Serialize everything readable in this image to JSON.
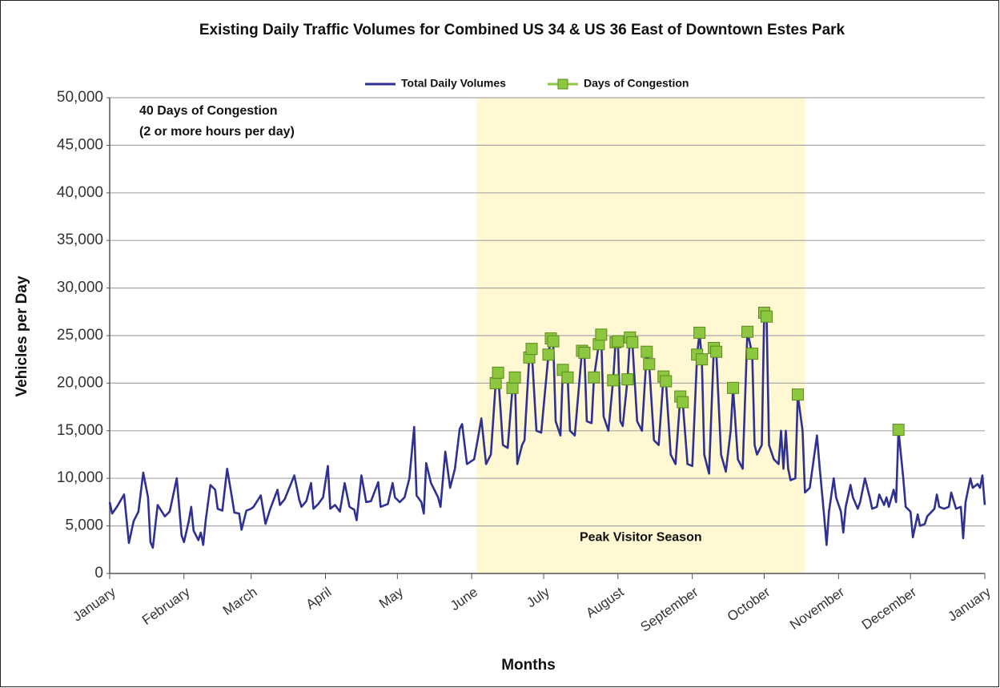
{
  "chart_data": {
    "type": "line",
    "title": "Existing Daily Traffic Volumes for Combined US 34 & US 36 East of Downtown Estes Park",
    "xlabel": "Months",
    "ylabel": "Vehicles per Day",
    "annotations": [
      "40 Days of Congestion",
      "(2 or more hours per day)"
    ],
    "highlight": {
      "x": [
        153,
        290
      ],
      "label": "Peak Visitor Season",
      "color": "#fff8d2"
    },
    "xlim": [
      0,
      365
    ],
    "xticks": [
      {
        "value": 0,
        "label": "January"
      },
      {
        "value": 31,
        "label": "February"
      },
      {
        "value": 59,
        "label": "March"
      },
      {
        "value": 90,
        "label": "April"
      },
      {
        "value": 120,
        "label": "May"
      },
      {
        "value": 151,
        "label": "June"
      },
      {
        "value": 181,
        "label": "July"
      },
      {
        "value": 212,
        "label": "August"
      },
      {
        "value": 243,
        "label": "September"
      },
      {
        "value": 273,
        "label": "October"
      },
      {
        "value": 304,
        "label": "November"
      },
      {
        "value": 334,
        "label": "December"
      },
      {
        "value": 365,
        "label": "January"
      }
    ],
    "ylim": [
      0,
      50000
    ],
    "yticks": [
      0,
      {
        "value": 5000,
        "label": "5,000"
      },
      {
        "value": 10000,
        "label": "10,000"
      },
      {
        "value": 15000,
        "label": "15,000"
      },
      {
        "value": 20000,
        "label": "20,000"
      },
      {
        "value": 25000,
        "label": "25,000"
      },
      {
        "value": 30000,
        "label": "30,000"
      },
      {
        "value": 35000,
        "label": "35,000"
      },
      {
        "value": 40000,
        "label": "40,000"
      },
      {
        "value": 45000,
        "label": "45,000"
      },
      {
        "value": 50000,
        "label": "50,000"
      }
    ],
    "grid": true,
    "series": [
      {
        "name": "Total Daily Volumes",
        "color": "#2e3192",
        "x": [
          0,
          1,
          3,
          6,
          8,
          10,
          12,
          14,
          16,
          17,
          18,
          20,
          23,
          25,
          28,
          30,
          31,
          33,
          34,
          35,
          37,
          38,
          39,
          40,
          42,
          44,
          45,
          47,
          49,
          51,
          52,
          54,
          55,
          57,
          59,
          60,
          63,
          65,
          67,
          70,
          71,
          73,
          77,
          79,
          80,
          82,
          84,
          85,
          87,
          89,
          91,
          92,
          94,
          96,
          98,
          100,
          102,
          103,
          105,
          107,
          109,
          112,
          113,
          116,
          118,
          119,
          121,
          123,
          125,
          127,
          128,
          130,
          131,
          132,
          134,
          137,
          138,
          140,
          142,
          144,
          146,
          147,
          149,
          152,
          154,
          155,
          157,
          159,
          161,
          162,
          164,
          166,
          168,
          169,
          170,
          172,
          173,
          175,
          176,
          178,
          180,
          183,
          184,
          185,
          186,
          188,
          189,
          191,
          192,
          194,
          197,
          198,
          199,
          201,
          202,
          204,
          205,
          206,
          208,
          210,
          211,
          212,
          213,
          214,
          216,
          217,
          218,
          220,
          222,
          224,
          225,
          227,
          229,
          231,
          232,
          234,
          236,
          238,
          239,
          241,
          243,
          245,
          246,
          247,
          248,
          250,
          252,
          253,
          255,
          257,
          259,
          260,
          262,
          264,
          266,
          268,
          269,
          270,
          272,
          273,
          274,
          275,
          277,
          279,
          280,
          281,
          282,
          283,
          284,
          286,
          287,
          289,
          290,
          292,
          295,
          296,
          298,
          299,
          300,
          302,
          303,
          305,
          306,
          307,
          309,
          310,
          312,
          313,
          315,
          317,
          318,
          320,
          321,
          323,
          324,
          325,
          327,
          328,
          329,
          331,
          332,
          334,
          335,
          337,
          338,
          340,
          341,
          344,
          345,
          346,
          348,
          350,
          351,
          353,
          355,
          356,
          357,
          359,
          360,
          362,
          363,
          364,
          365
        ],
        "values": [
          7500,
          6300,
          7000,
          8300,
          3200,
          5500,
          6500,
          10600,
          8000,
          3300,
          2700,
          7200,
          6000,
          6500,
          10000,
          4000,
          3300,
          5500,
          7000,
          4500,
          3500,
          4300,
          3000,
          5500,
          9300,
          8800,
          6800,
          6600,
          11000,
          8000,
          6400,
          6300,
          4600,
          6600,
          6800,
          7000,
          8200,
          5200,
          6800,
          8800,
          7200,
          7800,
          10300,
          7800,
          7000,
          7600,
          9500,
          6800,
          7300,
          8000,
          11300,
          6800,
          7200,
          6500,
          9500,
          7000,
          6700,
          5600,
          10300,
          7500,
          7600,
          9600,
          7000,
          7300,
          9500,
          8000,
          7500,
          8000,
          10000,
          15400,
          8200,
          7500,
          6300,
          11600,
          9500,
          8000,
          7000,
          12800,
          9000,
          11000,
          15200,
          15700,
          11500,
          12000,
          14800,
          16300,
          11500,
          12500,
          20000,
          21100,
          13500,
          13200,
          19500,
          20600,
          11500,
          13500,
          14000,
          22700,
          23600,
          15000,
          14800,
          23000,
          24700,
          24400,
          16000,
          14500,
          21400,
          20600,
          15000,
          14500,
          23400,
          23200,
          16000,
          15800,
          20600,
          24100,
          25100,
          16500,
          15000,
          20300,
          24300,
          24400,
          16000,
          15500,
          20400,
          24800,
          24300,
          16000,
          15000,
          23300,
          22000,
          14000,
          13500,
          20700,
          20200,
          12500,
          11500,
          18600,
          18000,
          11500,
          11300,
          23000,
          25300,
          22500,
          12500,
          10500,
          23700,
          23300,
          12500,
          10700,
          15000,
          19500,
          12000,
          11000,
          25400,
          23100,
          13500,
          12500,
          13500,
          27400,
          27000,
          13500,
          12000,
          11500,
          15000,
          11000,
          15000,
          11000,
          9800,
          10000,
          18800,
          15000,
          8500,
          9000,
          14500,
          11500,
          6000,
          3000,
          6500,
          10000,
          8000,
          6500,
          4300,
          7000,
          9300,
          8000,
          6800,
          7500,
          10000,
          8000,
          6800,
          7000,
          8300,
          7200,
          8000,
          7000,
          8800,
          7500,
          15100,
          10000,
          7000,
          6500,
          3800,
          6200,
          5000,
          5200,
          6000,
          6800,
          8300,
          7000,
          6800,
          7000,
          8500,
          6800,
          7000,
          3700,
          7500,
          10000,
          9000,
          9400,
          9000,
          10300,
          7200
        ]
      },
      {
        "name": "Days of Congestion",
        "color": "#8dc63f",
        "marker": "square",
        "x": [
          161,
          162,
          168,
          169,
          175,
          176,
          183,
          184,
          185,
          189,
          191,
          197,
          198,
          202,
          204,
          205,
          210,
          211,
          212,
          216,
          217,
          218,
          224,
          225,
          231,
          232,
          238,
          239,
          245,
          246,
          247,
          252,
          253,
          260,
          266,
          268,
          273,
          274,
          287,
          329
        ],
        "values": [
          20000,
          21100,
          19500,
          20600,
          22700,
          23600,
          23000,
          24700,
          24400,
          21400,
          20600,
          23400,
          23200,
          20600,
          24100,
          25100,
          20300,
          24300,
          24400,
          20400,
          24800,
          24300,
          23300,
          22000,
          20700,
          20200,
          18600,
          18000,
          23000,
          25300,
          22500,
          23700,
          23300,
          19500,
          25400,
          23100,
          27400,
          27000,
          18800,
          15100
        ]
      }
    ]
  }
}
